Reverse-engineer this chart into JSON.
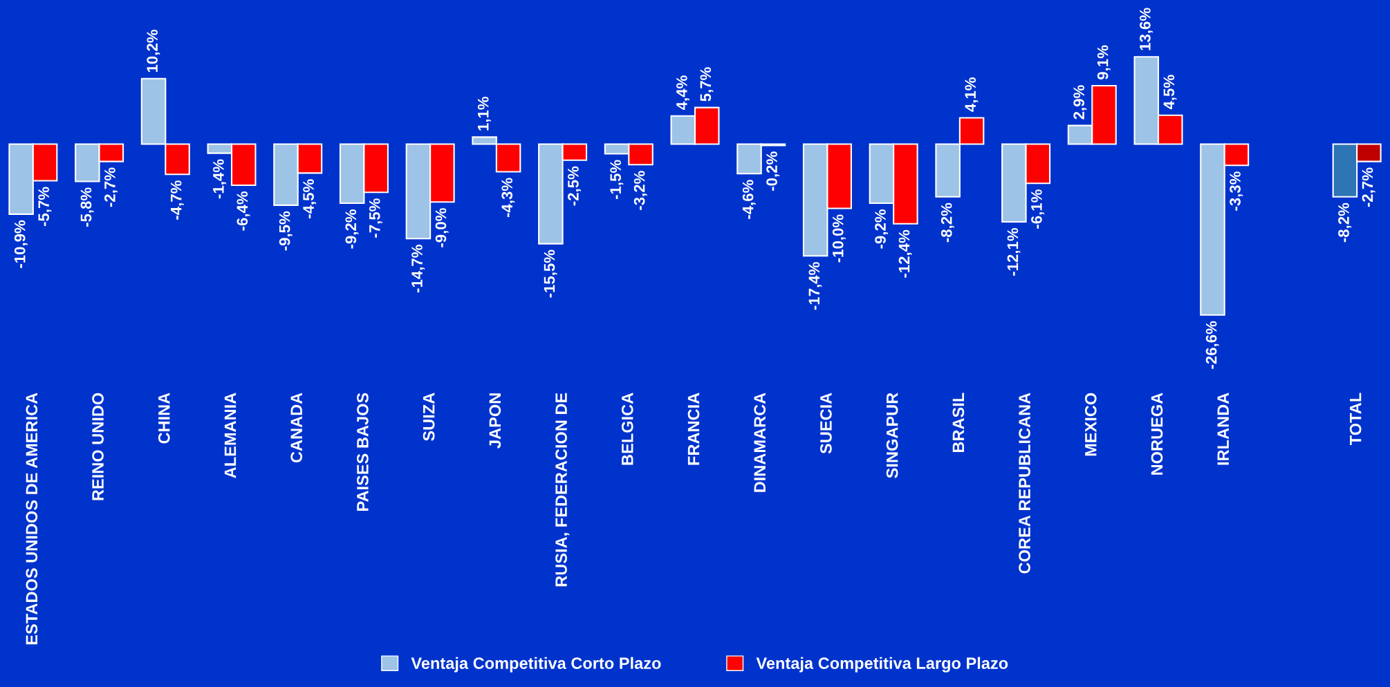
{
  "chart_data": {
    "type": "bar",
    "categories": [
      "ESTADOS UNIDOS DE AMERICA",
      "REINO UNIDO",
      "CHINA",
      "ALEMANIA",
      "CANADA",
      "PAISES BAJOS",
      "SUIZA",
      "JAPON",
      "RUSIA, FEDERACION DE",
      "BELGICA",
      "FRANCIA",
      "DINAMARCA",
      "SUECIA",
      "SINGAPUR",
      "BRASIL",
      "COREA REPUBLICANA",
      "MEXICO",
      "NORUEGA",
      "IRLANDA",
      null,
      "TOTAL"
    ],
    "series": [
      {
        "name": "Ventaja Competitiva Corto Plazo",
        "color": "#9dc3e6",
        "colors": [
          "#9dc3e6",
          "#9dc3e6",
          "#9dc3e6",
          "#9dc3e6",
          "#9dc3e6",
          "#9dc3e6",
          "#9dc3e6",
          "#9dc3e6",
          "#9dc3e6",
          "#9dc3e6",
          "#9dc3e6",
          "#9dc3e6",
          "#9dc3e6",
          "#9dc3e6",
          "#9dc3e6",
          "#9dc3e6",
          "#9dc3e6",
          "#9dc3e6",
          "#9dc3e6",
          "#9dc3e6",
          "#2e75b6"
        ],
        "values": [
          -10.9,
          -5.8,
          10.2,
          -1.4,
          -9.5,
          -9.2,
          -14.7,
          1.1,
          -15.5,
          -1.5,
          4.4,
          -4.6,
          -17.4,
          -9.2,
          -8.2,
          -12.1,
          2.9,
          13.6,
          -26.6,
          null,
          -8.2
        ],
        "value_labels": [
          "-10,9%",
          "-5,8%",
          "10,2%",
          "-1,4%",
          "-9,5%",
          "-9,2%",
          "-14,7%",
          "1,1%",
          "-15,5%",
          "-1,5%",
          "4,4%",
          "-4,6%",
          "-17,4%",
          "-9,2%",
          "-8,2%",
          "-12,1%",
          "2,9%",
          "13,6%",
          "-26,6%",
          null,
          "-8,2%"
        ]
      },
      {
        "name": "Ventaja Competitiva Largo Plazo",
        "color": "#ff0000",
        "colors": [
          "#ff0000",
          "#ff0000",
          "#ff0000",
          "#ff0000",
          "#ff0000",
          "#ff0000",
          "#ff0000",
          "#ff0000",
          "#ff0000",
          "#ff0000",
          "#ff0000",
          "#ff0000",
          "#ff0000",
          "#ff0000",
          "#ff0000",
          "#ff0000",
          "#ff0000",
          "#ff0000",
          "#ff0000",
          "#ff0000",
          "#c00000"
        ],
        "values": [
          -5.7,
          -2.7,
          -4.7,
          -6.4,
          -4.5,
          -7.5,
          -9.0,
          -4.3,
          -2.5,
          -3.2,
          5.7,
          -0.2,
          -10.0,
          -12.4,
          4.1,
          -6.1,
          9.1,
          4.5,
          -3.3,
          null,
          -2.7
        ],
        "value_labels": [
          "-5,7%",
          "-2,7%",
          "-4,7%",
          "-6,4%",
          "-4,5%",
          "-7,5%",
          "-9,0%",
          "-4,3%",
          "-2,5%",
          "-3,2%",
          "5,7%",
          "-0,2%",
          "-10,0%",
          "-12,4%",
          "4,1%",
          "-6,1%",
          "9,1%",
          "4,5%",
          "-3,3%",
          null,
          "-2,7%"
        ]
      }
    ],
    "legend": "bottom",
    "grid": false,
    "tick_labels": "x"
  }
}
